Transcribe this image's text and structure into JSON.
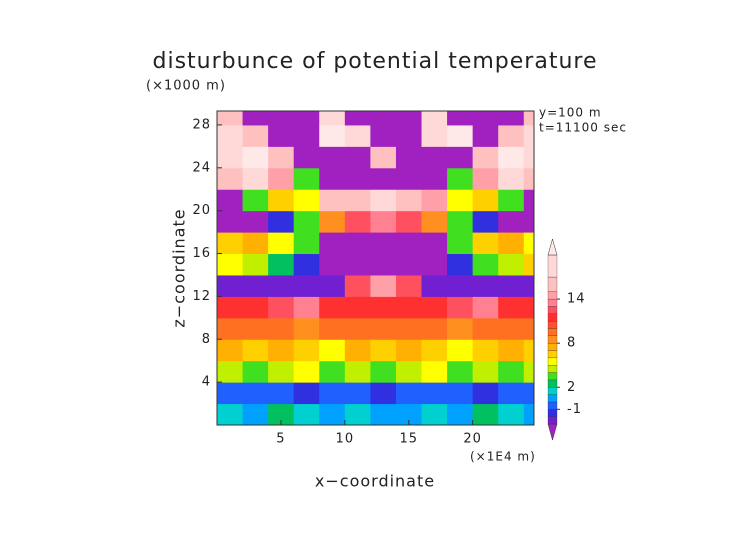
{
  "chart_data": {
    "type": "contour",
    "title": "disturbunce of potential temperature",
    "y_unit": "(×1000 m)",
    "x_unit": "(×1E4 m)",
    "annotations": [
      "y=100 m",
      "t=11100 sec"
    ],
    "xlabel": "x−coordinate",
    "ylabel": "z−coordinate",
    "xlim": [
      0,
      24.8
    ],
    "ylim": [
      0,
      29.3
    ],
    "xticks": [
      5,
      10,
      15,
      20
    ],
    "yticks": [
      4,
      8,
      12,
      16,
      20,
      24,
      28
    ],
    "xbins": [
      0,
      2,
      4,
      6,
      8,
      10,
      12,
      14,
      16,
      18,
      20,
      22,
      24,
      24.8
    ],
    "ybins": [
      0,
      2,
      4,
      6,
      8,
      10,
      12,
      14,
      16,
      18,
      20,
      22,
      24,
      26,
      28,
      29.3
    ],
    "z": [
      [
        1,
        0,
        2,
        1,
        0,
        1,
        0,
        0,
        1,
        0,
        2,
        1,
        0
      ],
      [
        -1,
        -1,
        -1,
        -2,
        -1,
        -1,
        -2,
        -1,
        -1,
        -1,
        -2,
        -1,
        -1
      ],
      [
        4,
        3,
        4,
        5,
        3,
        4,
        3,
        4,
        5,
        3,
        4,
        3,
        4
      ],
      [
        7,
        6,
        7,
        6,
        5,
        7,
        6,
        7,
        6,
        5,
        6,
        7,
        6
      ],
      [
        9,
        9,
        9,
        8,
        9,
        9,
        9,
        9,
        9,
        8,
        9,
        9,
        9
      ],
      [
        11,
        11,
        12,
        13,
        11,
        11,
        11,
        11,
        11,
        12,
        13,
        11,
        11
      ],
      [
        -3,
        -3,
        -3,
        -3,
        -3,
        12,
        14,
        12,
        -3,
        -3,
        -3,
        -3,
        -3
      ],
      [
        5,
        4,
        2,
        -2,
        -4,
        -4,
        -4,
        -4,
        -4,
        -2,
        3,
        4,
        6
      ],
      [
        6,
        7,
        5,
        3,
        -4,
        -4,
        -4,
        -4,
        -4,
        3,
        6,
        7,
        5
      ],
      [
        -4,
        -4,
        -2,
        3,
        8,
        12,
        13,
        12,
        8,
        3,
        -2,
        -4,
        -4
      ],
      [
        -4,
        3,
        6,
        5,
        15,
        16,
        17,
        16,
        14,
        5,
        6,
        3,
        -4
      ],
      [
        16,
        18,
        14,
        3,
        -4,
        -4,
        -4,
        -4,
        -4,
        3,
        14,
        18,
        16
      ],
      [
        18,
        21,
        16,
        -4,
        -4,
        -4,
        16,
        -4,
        -4,
        -4,
        16,
        21,
        18
      ],
      [
        18,
        16,
        -4,
        -4,
        21,
        18,
        -4,
        -4,
        18,
        21,
        -4,
        16,
        18
      ],
      [
        16,
        -4,
        -4,
        -4,
        18,
        -4,
        -4,
        -4,
        18,
        -4,
        -4,
        -4,
        16
      ]
    ],
    "levels": [
      -3,
      -2,
      -1,
      0,
      1,
      2,
      3,
      4,
      5,
      6,
      7,
      8,
      9,
      10,
      11,
      12,
      13,
      14,
      15,
      17,
      20
    ],
    "colors": [
      "#a020c0",
      "#7020d0",
      "#3030e0",
      "#2060ff",
      "#00a0ff",
      "#00d0d0",
      "#00c060",
      "#40e020",
      "#c0f000",
      "#ffff00",
      "#ffd000",
      "#ffb000",
      "#ff9020",
      "#ff7020",
      "#ff5030",
      "#ff3030",
      "#ff5060",
      "#ff8090",
      "#ffa0a8",
      "#ffc0c0",
      "#ffd8d8",
      "#ffe8e8"
    ],
    "colorbar_ticks": [
      -1,
      2,
      8,
      14
    ]
  }
}
